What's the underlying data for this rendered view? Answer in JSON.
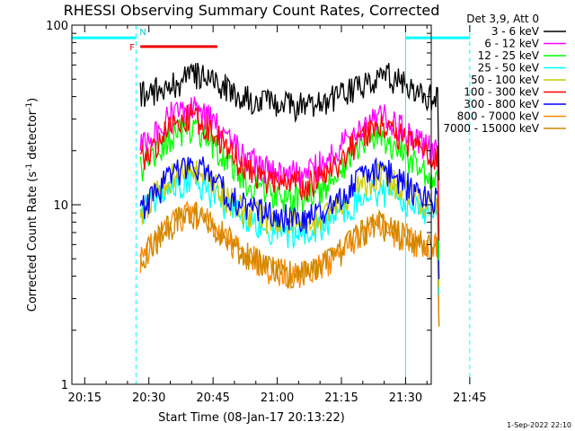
{
  "chart_data": {
    "type": "line",
    "title": "RHESSI Observing Summary Count Rates, Corrected",
    "xlabel": "Start Time (08-Jan-17 20:13:22)",
    "ylabel_main": "Corrected Count Rate (s",
    "ylabel_sup1": "-1",
    "ylabel_mid": " detector",
    "ylabel_sup2": "-1",
    "ylabel_end": ")",
    "yscale": "log",
    "ylim": [
      1,
      100
    ],
    "xlim_minutes": [
      12,
      96
    ],
    "x_ticks": [
      {
        "m": 15,
        "label": "20:15"
      },
      {
        "m": 30,
        "label": "20:30"
      },
      {
        "m": 45,
        "label": "20:45"
      },
      {
        "m": 60,
        "label": "21:00"
      },
      {
        "m": 75,
        "label": "21:15"
      },
      {
        "m": 90,
        "label": "21:30"
      },
      {
        "m": 105,
        "label": "21:45"
      }
    ],
    "y_ticks": [
      {
        "v": 1,
        "label": "1"
      },
      {
        "v": 10,
        "label": "10"
      },
      {
        "v": 100,
        "label": "100"
      }
    ],
    "legend_header": "Det 3,9, Att 0",
    "legend_placement": "top-right",
    "series": [
      {
        "name": "3 - 6 keV",
        "color": "#000000",
        "knots": [
          [
            28,
            42
          ],
          [
            33,
            44
          ],
          [
            38,
            50
          ],
          [
            42,
            53
          ],
          [
            46,
            48
          ],
          [
            52,
            40
          ],
          [
            58,
            37
          ],
          [
            64,
            36
          ],
          [
            70,
            37
          ],
          [
            76,
            42
          ],
          [
            82,
            50
          ],
          [
            86,
            52
          ],
          [
            90,
            46
          ],
          [
            94,
            41
          ],
          [
            97,
            39
          ]
        ]
      },
      {
        "name": "6 - 12 keV",
        "color": "#ff00ff",
        "knots": [
          [
            28,
            22
          ],
          [
            32,
            27
          ],
          [
            36,
            33
          ],
          [
            40,
            35
          ],
          [
            44,
            31
          ],
          [
            48,
            24
          ],
          [
            52,
            19
          ],
          [
            57,
            16
          ],
          [
            62,
            15
          ],
          [
            67,
            15
          ],
          [
            72,
            18
          ],
          [
            76,
            23
          ],
          [
            80,
            28
          ],
          [
            84,
            32
          ],
          [
            88,
            28
          ],
          [
            92,
            23
          ],
          [
            97,
            20
          ]
        ]
      },
      {
        "name": "12 - 25 keV",
        "color": "#00ff00",
        "knots": [
          [
            28,
            16
          ],
          [
            32,
            20
          ],
          [
            36,
            25
          ],
          [
            40,
            27
          ],
          [
            44,
            23
          ],
          [
            48,
            18
          ],
          [
            52,
            14
          ],
          [
            57,
            12
          ],
          [
            62,
            11
          ],
          [
            67,
            11
          ],
          [
            72,
            13
          ],
          [
            76,
            17
          ],
          [
            80,
            21
          ],
          [
            84,
            24
          ],
          [
            88,
            21
          ],
          [
            92,
            17
          ],
          [
            97,
            14
          ]
        ]
      },
      {
        "name": "25 - 50 keV",
        "color": "#00ffff",
        "knots": [
          [
            28,
            9
          ],
          [
            32,
            11
          ],
          [
            36,
            13
          ],
          [
            40,
            14
          ],
          [
            44,
            12
          ],
          [
            48,
            10
          ],
          [
            52,
            8.5
          ],
          [
            57,
            7.5
          ],
          [
            62,
            7
          ],
          [
            67,
            7
          ],
          [
            72,
            8
          ],
          [
            76,
            9.5
          ],
          [
            80,
            11
          ],
          [
            84,
            12
          ],
          [
            88,
            11
          ],
          [
            92,
            10
          ],
          [
            97,
            9
          ]
        ]
      },
      {
        "name": "50 - 100 keV",
        "color": "#cccc00",
        "knots": [
          [
            28,
            9
          ],
          [
            32,
            12
          ],
          [
            36,
            15
          ],
          [
            40,
            16
          ],
          [
            44,
            14
          ],
          [
            48,
            11
          ],
          [
            52,
            9.5
          ],
          [
            57,
            8.5
          ],
          [
            62,
            8
          ],
          [
            67,
            8
          ],
          [
            72,
            9
          ],
          [
            76,
            11
          ],
          [
            80,
            13
          ],
          [
            84,
            15
          ],
          [
            88,
            13
          ],
          [
            92,
            11
          ],
          [
            97,
            10
          ]
        ]
      },
      {
        "name": "100 - 300 keV",
        "color": "#ff0000",
        "knots": [
          [
            28,
            18
          ],
          [
            32,
            22
          ],
          [
            36,
            28
          ],
          [
            40,
            31
          ],
          [
            44,
            27
          ],
          [
            48,
            21
          ],
          [
            52,
            16
          ],
          [
            57,
            14
          ],
          [
            62,
            13
          ],
          [
            67,
            13
          ],
          [
            72,
            15
          ],
          [
            76,
            19
          ],
          [
            80,
            24
          ],
          [
            84,
            28
          ],
          [
            88,
            25
          ],
          [
            92,
            21
          ],
          [
            97,
            18
          ]
        ]
      },
      {
        "name": "300 - 800 keV",
        "color": "#0000ff",
        "knots": [
          [
            28,
            9.5
          ],
          [
            32,
            12
          ],
          [
            36,
            15
          ],
          [
            40,
            17
          ],
          [
            44,
            15
          ],
          [
            48,
            12
          ],
          [
            52,
            10
          ],
          [
            57,
            9
          ],
          [
            62,
            8.5
          ],
          [
            67,
            8.5
          ],
          [
            72,
            9.5
          ],
          [
            76,
            12
          ],
          [
            80,
            14
          ],
          [
            84,
            16
          ],
          [
            88,
            14
          ],
          [
            92,
            12
          ],
          [
            97,
            11
          ]
        ]
      },
      {
        "name": "800 - 7000 keV",
        "color": "#ff8800",
        "knots": [
          [
            28,
            5
          ],
          [
            32,
            6.5
          ],
          [
            36,
            8
          ],
          [
            40,
            9
          ],
          [
            44,
            8
          ],
          [
            48,
            6.5
          ],
          [
            52,
            5.5
          ],
          [
            57,
            4.5
          ],
          [
            62,
            4.2
          ],
          [
            67,
            4.2
          ],
          [
            72,
            4.8
          ],
          [
            76,
            5.8
          ],
          [
            80,
            7
          ],
          [
            84,
            7.8
          ],
          [
            88,
            7
          ],
          [
            92,
            6.2
          ],
          [
            97,
            6
          ]
        ]
      },
      {
        "name": "7000 - 15000 keV",
        "color": "#cc8800",
        "knots": [
          [
            28,
            5
          ],
          [
            32,
            6.5
          ],
          [
            36,
            8
          ],
          [
            40,
            9
          ],
          [
            44,
            8
          ],
          [
            48,
            6.5
          ],
          [
            52,
            5.5
          ],
          [
            57,
            4.5
          ],
          [
            62,
            4.2
          ],
          [
            67,
            4.2
          ],
          [
            72,
            4.8
          ],
          [
            76,
            5.8
          ],
          [
            80,
            7
          ],
          [
            84,
            7.8
          ],
          [
            88,
            7
          ],
          [
            92,
            6.2
          ],
          [
            97,
            6
          ]
        ]
      }
    ],
    "night_bars": [
      {
        "label": "N",
        "m_start": 12,
        "m_end": 27
      },
      {
        "label": "",
        "m_start": 90,
        "m_end": 105
      }
    ],
    "flare_bar": {
      "label": "F",
      "m_start": 28,
      "m_end": 46
    },
    "night_bar_value": 85,
    "flare_bar_value": 76,
    "saa_lines": [
      {
        "m": 12,
        "style": "solid"
      },
      {
        "m": 27,
        "style": "dashed"
      },
      {
        "m": 90,
        "style": "solid"
      },
      {
        "m": 105,
        "style": "dashed"
      }
    ],
    "data_start_m": 28,
    "data_end_m": 97.5,
    "timestamp": "1-Sep-2022 22:10"
  }
}
